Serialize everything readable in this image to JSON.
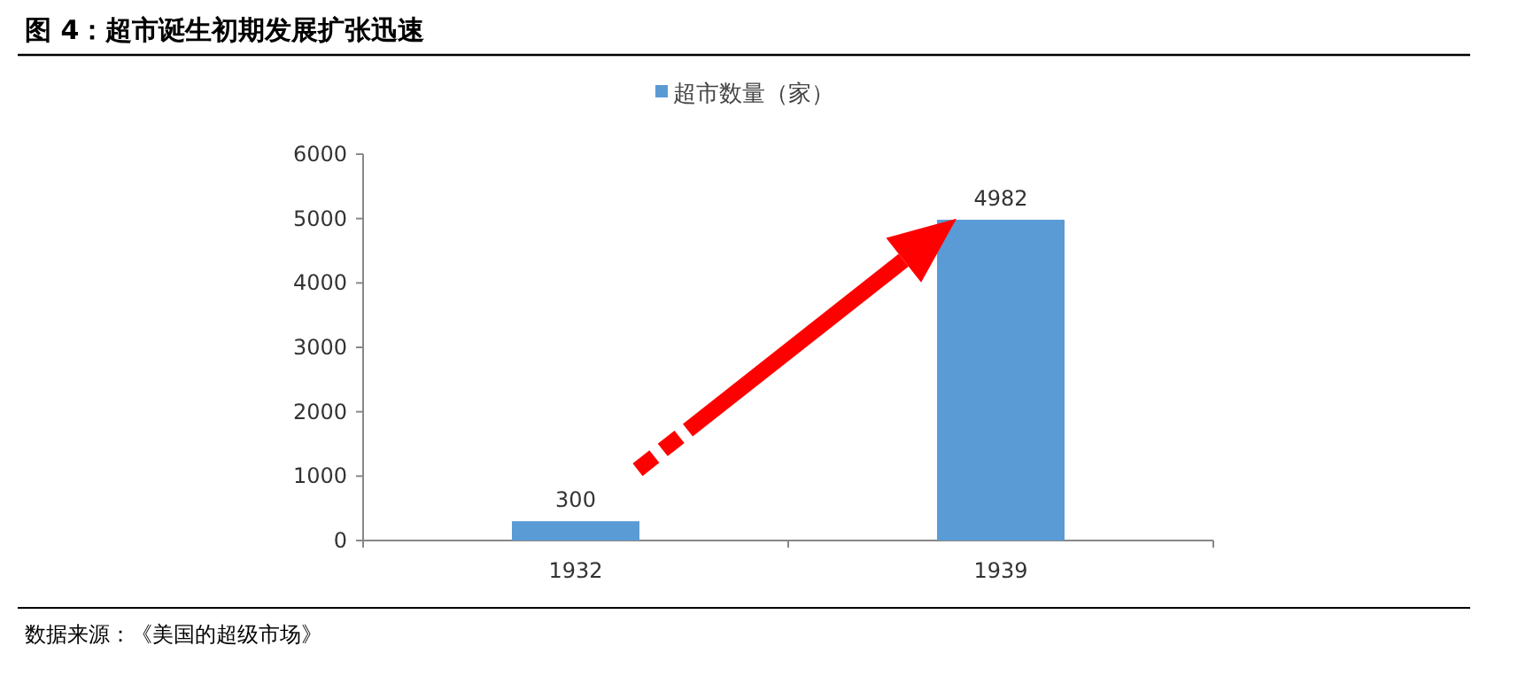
{
  "chart_data": {
    "type": "bar",
    "title": "图 4：超市诞生初期发展扩张迅速",
    "categories": [
      "1932",
      "1939"
    ],
    "series": [
      {
        "name": "超市数量（家）",
        "color": "#5b9bd5",
        "values": [
          300,
          4982
        ]
      }
    ],
    "ylim": [
      0,
      6000
    ],
    "yticks": [
      0,
      1000,
      2000,
      3000,
      4000,
      5000,
      6000
    ],
    "data_labels": true,
    "legend": "top",
    "grid": false,
    "annotations": [
      "数据来源：《美国的超级市场》"
    ]
  }
}
